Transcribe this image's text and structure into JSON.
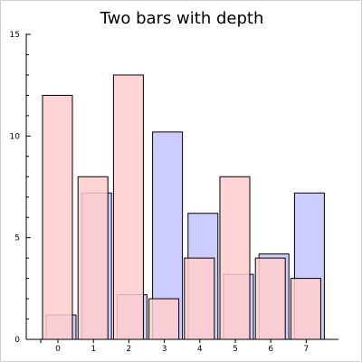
{
  "chart_data": {
    "type": "bar",
    "title": "Two bars with depth",
    "xlabel": "",
    "ylabel": "",
    "categories": [
      "0",
      "1",
      "2",
      "3",
      "4",
      "5",
      "6",
      "7"
    ],
    "ylim": [
      0,
      15
    ],
    "yticks": [
      "0",
      "5",
      "10",
      "15"
    ],
    "grid": false,
    "style": "overlapping bars with depth offset",
    "series": [
      {
        "values": [
          1.2,
          7.2,
          2.2,
          10.2,
          6.2,
          3.2,
          4.2,
          7.2
        ],
        "color": "#ccccff",
        "layer": "back"
      },
      {
        "values": [
          12,
          8,
          13,
          2,
          4,
          8,
          4,
          3
        ],
        "color": "#ffcccc",
        "opacity": 0.85,
        "layer": "front"
      }
    ]
  }
}
